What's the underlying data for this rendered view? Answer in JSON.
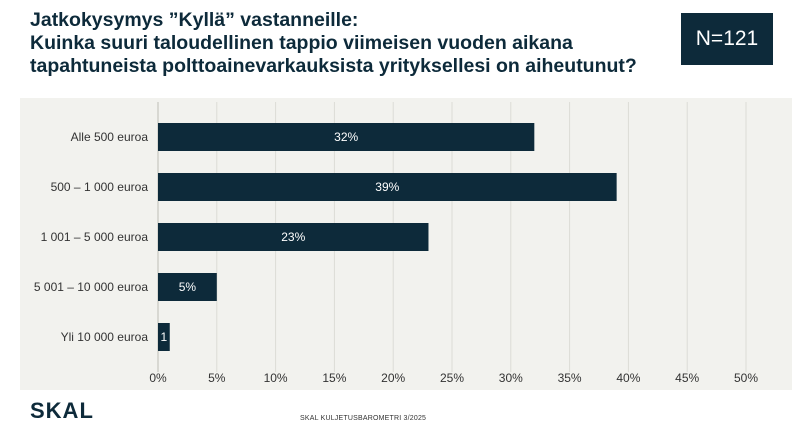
{
  "title_lines": [
    "Jatkokysymys ”Kyllä” vastanneille:",
    "Kuinka suuri taloudellinen tappio viimeisen vuoden aikana",
    "tapahtuneista polttoainevarkauksista yrityksellesi on aiheutunut?"
  ],
  "n_badge": "N=121",
  "logo": "SKAL",
  "footer": "SKAL KULJETUSBAROMETRI 3/2025",
  "colors": {
    "bar": "#0d2a3a",
    "plot_bg": "#f2f2ee",
    "grid": "#dcdcd6"
  },
  "chart_data": {
    "type": "bar",
    "orientation": "horizontal",
    "categories": [
      "Alle 500 euroa",
      "500 – 1 000 euroa",
      "1 001 – 5 000 euroa",
      "5 001 – 10 000 euroa",
      "Yli 10 000 euroa"
    ],
    "values": [
      32,
      39,
      23,
      5,
      1
    ],
    "data_labels": [
      "32%",
      "39%",
      "23%",
      "5%",
      "1"
    ],
    "x_ticks": [
      0,
      5,
      10,
      15,
      20,
      25,
      30,
      35,
      40,
      45,
      50
    ],
    "x_tick_labels": [
      "0%",
      "5%",
      "10%",
      "15%",
      "20%",
      "25%",
      "30%",
      "35%",
      "40%",
      "45%",
      "50%"
    ],
    "xlim": [
      0,
      50
    ],
    "grid": true
  }
}
